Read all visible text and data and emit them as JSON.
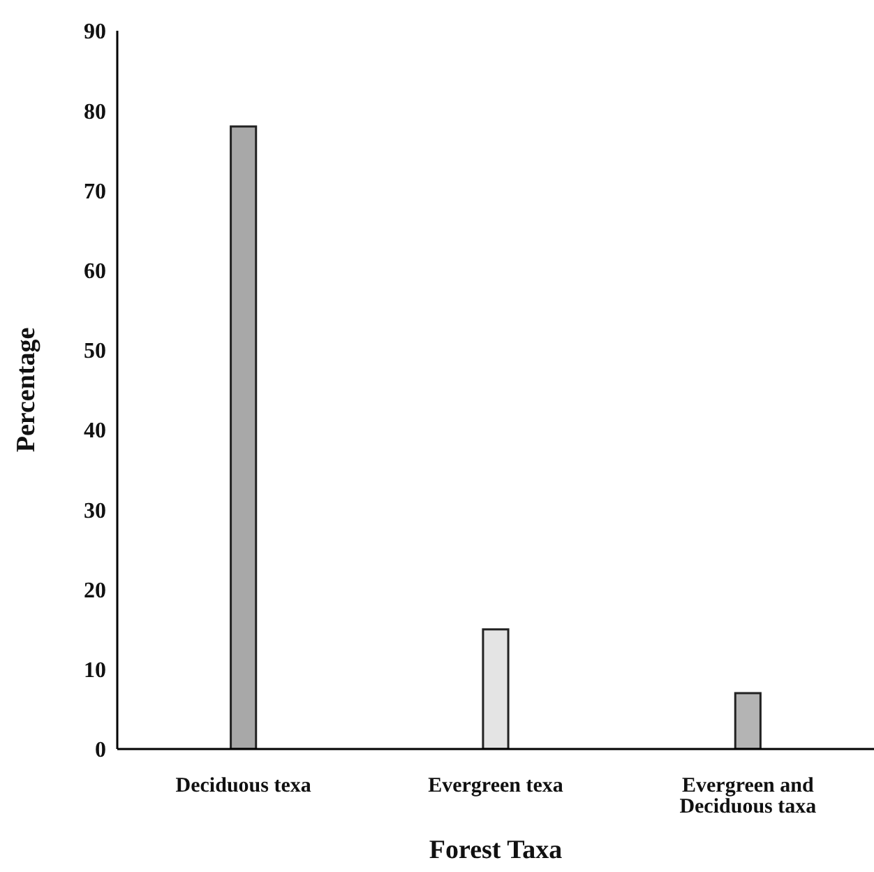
{
  "chart_data": {
    "type": "bar",
    "xlabel": "Forest Taxa",
    "ylabel": "Percentage",
    "categories": [
      "Deciduous texa",
      "Evergreen texa",
      "Evergreen and Deciduous taxa"
    ],
    "values": [
      78,
      15,
      7
    ],
    "colors": [
      "#a8a8a8",
      "#e4e4e4",
      "#b4b4b4"
    ],
    "ylim": [
      0,
      90
    ],
    "yticks": [
      0,
      10,
      20,
      30,
      40,
      50,
      60,
      70,
      80,
      90
    ],
    "grid": false,
    "legend": false
  }
}
